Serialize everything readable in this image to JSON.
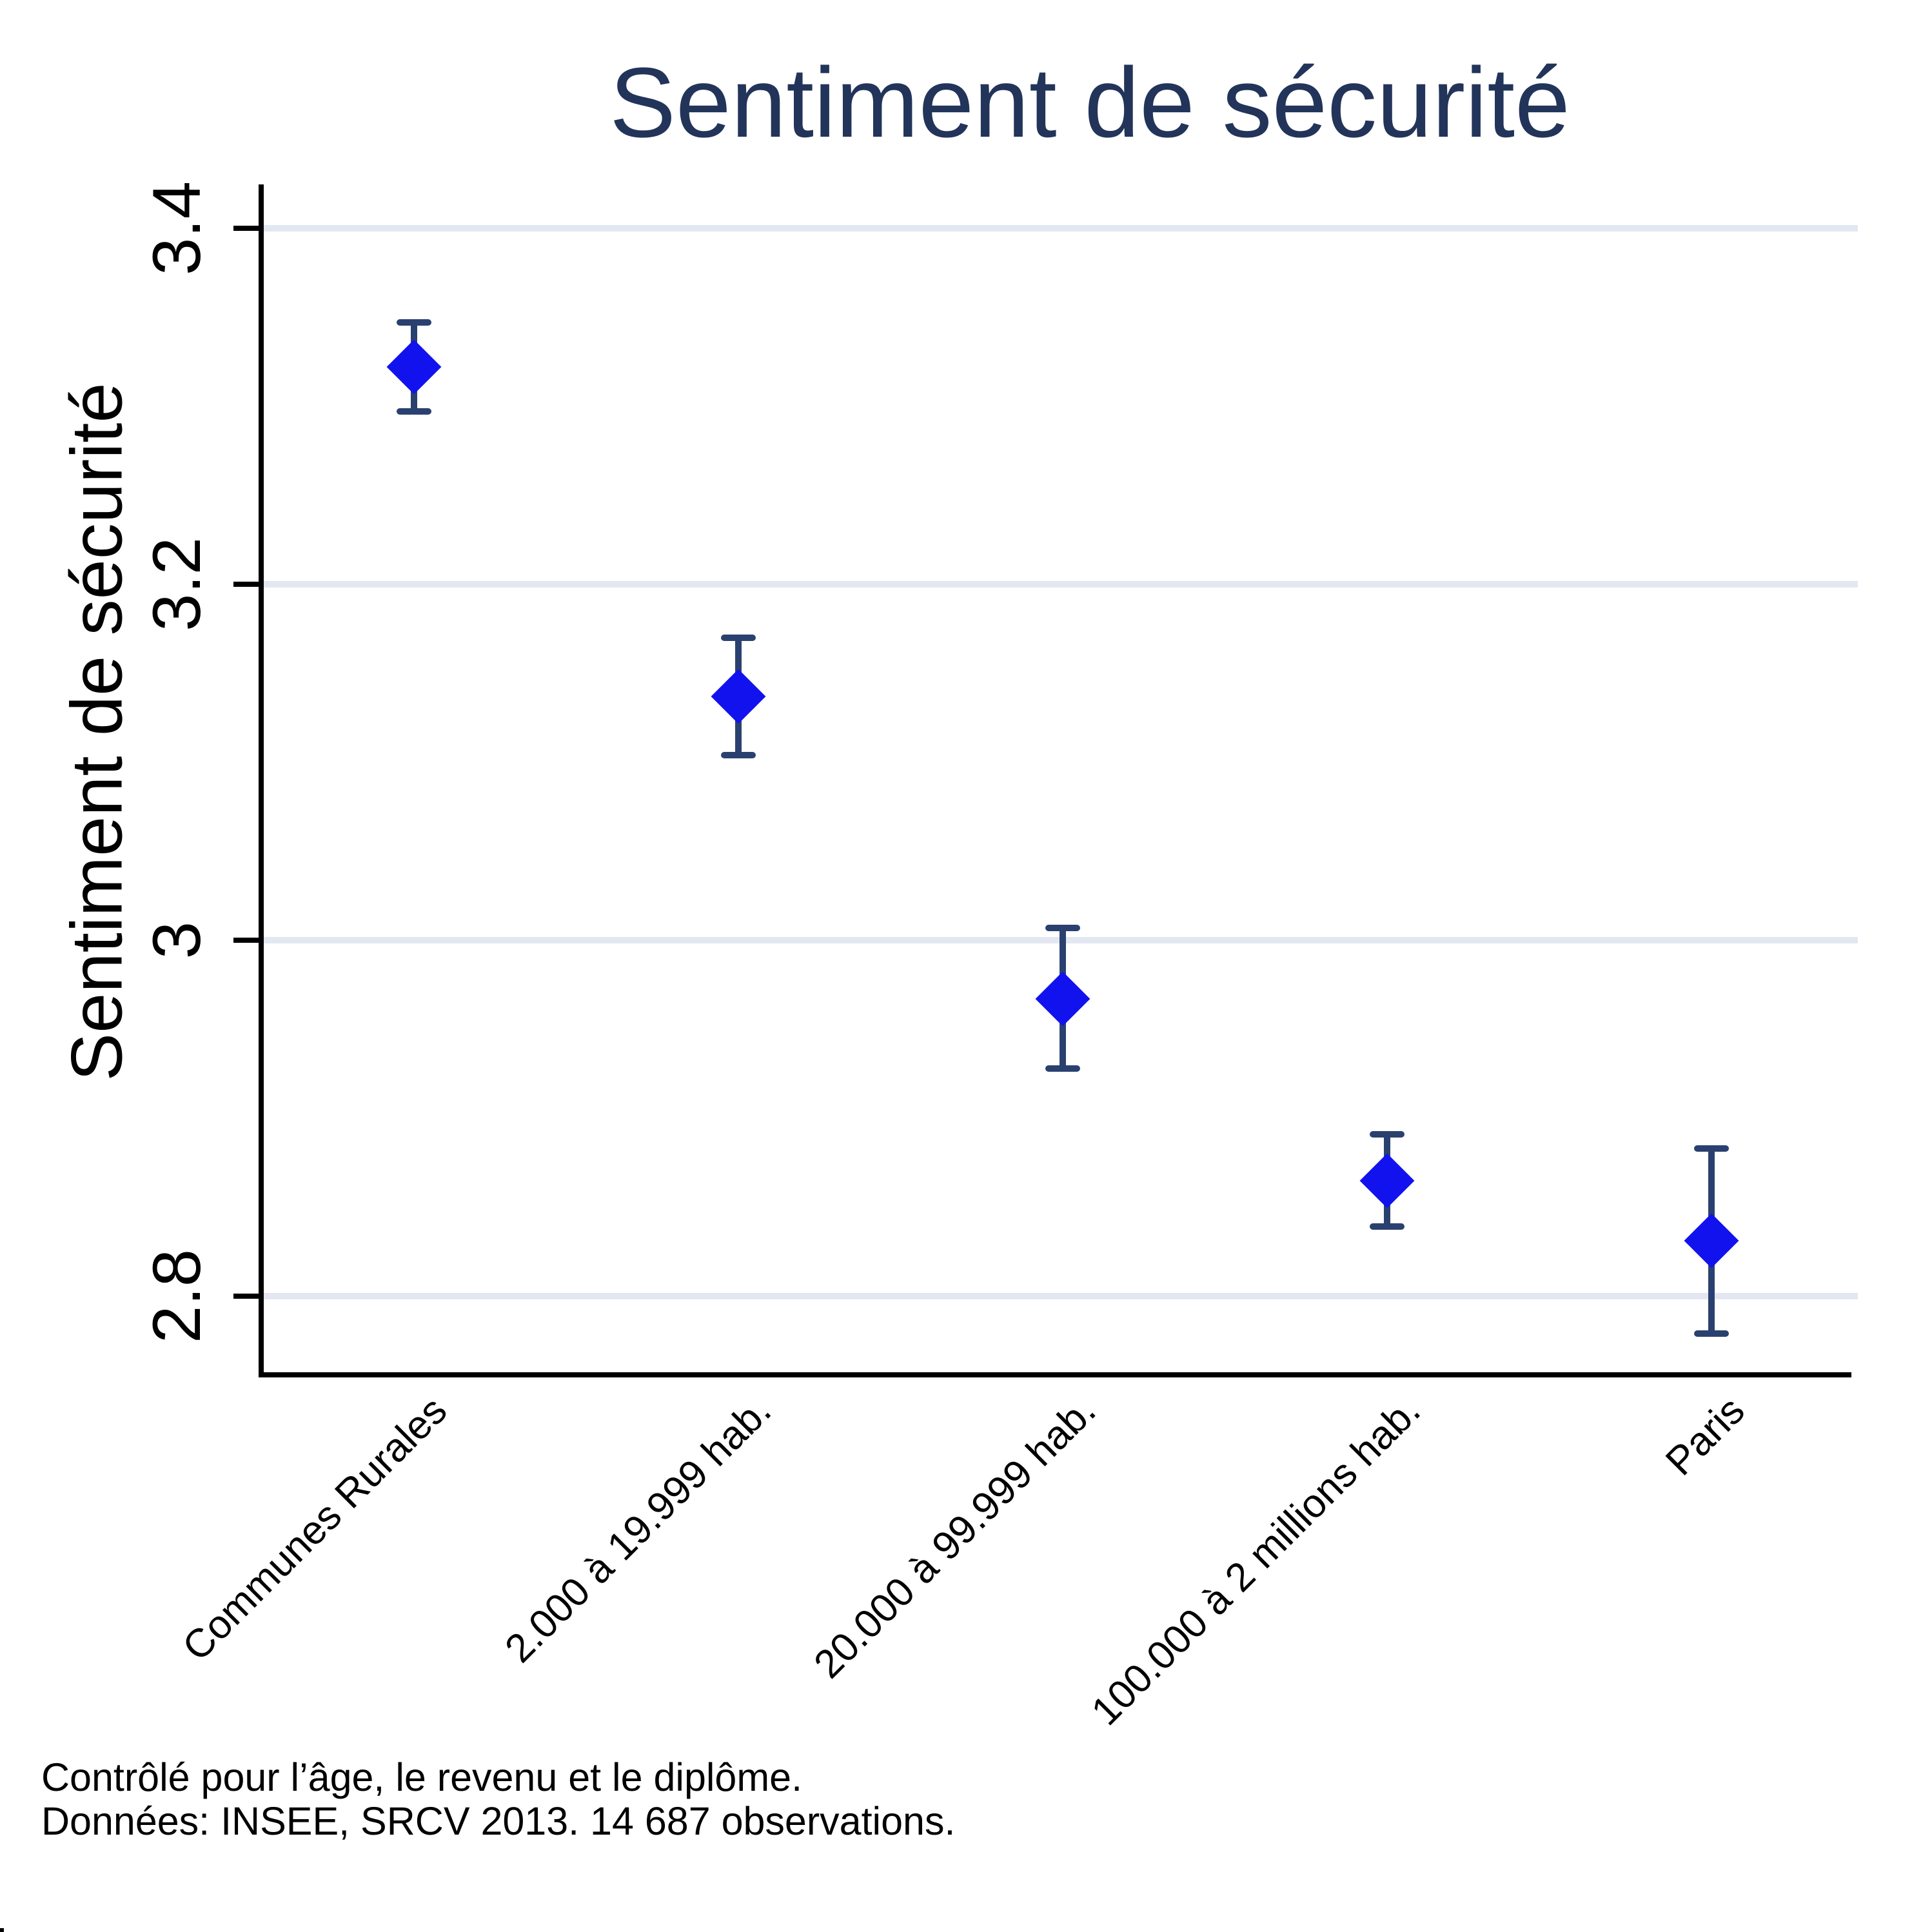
{
  "title": "Sentiment de sécurité",
  "y_axis": {
    "label": "Sentiment de sécurité",
    "tick_labels": [
      "3.4",
      "3.2",
      "3",
      "2.8"
    ]
  },
  "notes": {
    "line1": "Contrôlé pour l’âge, le revenu et le diplôme.",
    "line2": "Données: INSEE, SRCV 2013. 14 687 observations."
  },
  "chart_data": {
    "type": "scatter",
    "subtype": "point_estimates_with_95pct_confidence_intervals",
    "title": "Sentiment de sécurité",
    "xlabel": "",
    "ylabel": "Sentiment de sécurité",
    "ylim": [
      2.76,
      3.42
    ],
    "yticks": [
      3.4,
      3.2,
      3.0,
      2.8
    ],
    "grid": "horizontal",
    "legend": "none",
    "categories": [
      "Communes Rurales",
      "2.000 à 19.999 hab.",
      "20.000 à 99.999 hab.",
      "100.000 à 2 millions hab.",
      "Paris"
    ],
    "series": [
      {
        "name": "Sentiment de sécurité",
        "marker": "diamond",
        "estimates": [
          3.322,
          3.137,
          2.967,
          2.865,
          2.831
        ],
        "ci_low": [
          3.297,
          3.104,
          2.928,
          2.839,
          2.779
        ],
        "ci_high": [
          3.347,
          3.17,
          3.007,
          2.891,
          2.883
        ]
      }
    ]
  },
  "colors": {
    "background": "#ffffff",
    "title": "#223459",
    "marker": "#1212ee",
    "error_bar": "#2a4170",
    "gridline": "#e3e7f2",
    "axis": "#000000"
  }
}
